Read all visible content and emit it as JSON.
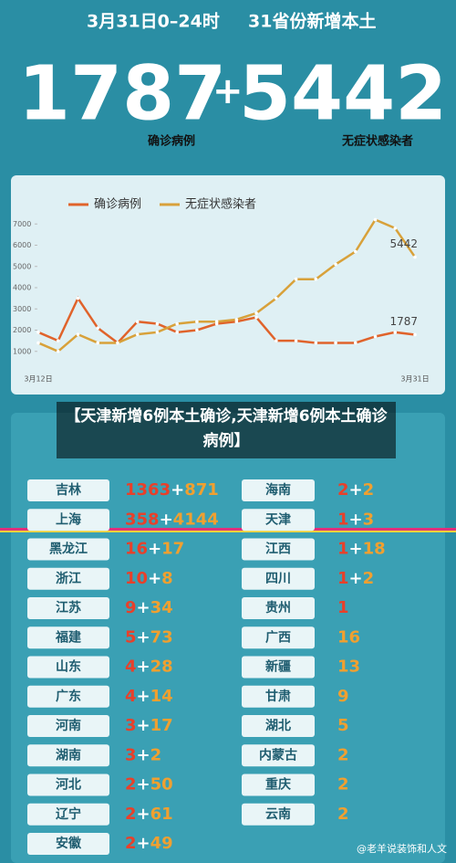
{
  "header": {
    "date": "3月31日0–24时",
    "subtitle": "31省份新增本土",
    "confirmed": "1787",
    "plus": "+",
    "asymptomatic": "5442",
    "confirmed_label": "确诊病例",
    "asymptomatic_label": "无症状感染者"
  },
  "chart_data": {
    "type": "line",
    "categories": [
      "3月12日",
      null,
      null,
      null,
      null,
      null,
      null,
      null,
      null,
      null,
      null,
      null,
      null,
      null,
      null,
      null,
      null,
      null,
      null,
      "3月31日"
    ],
    "series": [
      {
        "name": "确诊病例",
        "color": "#e0632b",
        "values": [
          1900,
          1500,
          3500,
          2100,
          1400,
          2400,
          2300,
          1900,
          2000,
          2300,
          2400,
          2600,
          1500,
          1500,
          1400,
          1400,
          1400,
          1700,
          1900,
          1787
        ]
      },
      {
        "name": "无症状感染者",
        "color": "#d8a13a",
        "values": [
          1400,
          1000,
          1800,
          1400,
          1400,
          1800,
          1900,
          2300,
          2400,
          2400,
          2500,
          2800,
          3500,
          4400,
          4400,
          5100,
          5700,
          7200,
          6800,
          5442
        ]
      }
    ],
    "ylim": [
      0,
      8000
    ],
    "yticks": [
      1000,
      2000,
      3000,
      4000,
      5000,
      6000,
      7000
    ],
    "legend": "top"
  },
  "caption": "【天津新增6例本土确诊,天津新增6例本土确诊病例】",
  "plus": "+",
  "table": {
    "left": [
      [
        "吉林",
        "1363",
        "871"
      ],
      [
        "上海",
        "358",
        "4144"
      ],
      [
        "黑龙江",
        "16",
        "17"
      ],
      [
        "浙江",
        "10",
        "8"
      ],
      [
        "江苏",
        "9",
        "34"
      ],
      [
        "福建",
        "5",
        "73"
      ],
      [
        "山东",
        "4",
        "28"
      ],
      [
        "广东",
        "4",
        "14"
      ],
      [
        "河南",
        "3",
        "17"
      ],
      [
        "湖南",
        "3",
        "2"
      ],
      [
        "河北",
        "2",
        "50"
      ],
      [
        "辽宁",
        "2",
        "61"
      ],
      [
        "安徽",
        "2",
        "49"
      ]
    ],
    "right": [
      [
        "海南",
        "2",
        "2"
      ],
      [
        "天津",
        "1",
        "3"
      ],
      [
        "江西",
        "1",
        "18"
      ],
      [
        "四川",
        "1",
        "2"
      ],
      [
        "贵州",
        "1",
        null
      ],
      [
        "广西",
        null,
        "16"
      ],
      [
        "新疆",
        null,
        "13"
      ],
      [
        "甘肃",
        null,
        "9"
      ],
      [
        "湖北",
        null,
        "5"
      ],
      [
        "内蒙古",
        null,
        "2"
      ],
      [
        "重庆",
        null,
        "2"
      ],
      [
        "云南",
        null,
        "2"
      ]
    ]
  },
  "watermark": "@老羊说装饰和人文"
}
